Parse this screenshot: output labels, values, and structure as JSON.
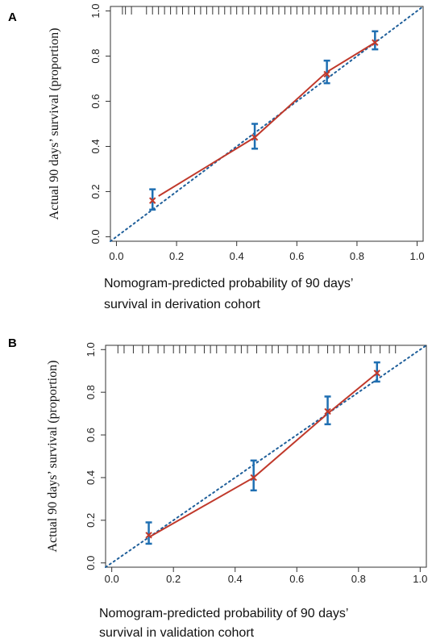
{
  "chart_data": [
    {
      "type": "scatter",
      "panel_label": "A",
      "xlabel": [
        "Nomogram-predicted probability  of 90 days’",
        "survival in derivation cohort"
      ],
      "ylabel": "Actual 90 days’ survival (proportion)",
      "xlim": [
        -0.02,
        1.02
      ],
      "ylim": [
        -0.02,
        1.02
      ],
      "xticks": [
        "0.0",
        "0.2",
        "0.4",
        "0.6",
        "0.8",
        "1.0"
      ],
      "yticks": [
        "0.0",
        "0.2",
        "0.4",
        "0.6",
        "0.8",
        "1.0"
      ],
      "reference_line": {
        "from": [
          -0.02,
          -0.02
        ],
        "to": [
          1.02,
          1.02
        ],
        "style": "dotted",
        "color": "#1f5f9a"
      },
      "calibration_line": {
        "x": [
          0.14,
          0.46,
          0.7,
          0.86
        ],
        "y": [
          0.18,
          0.44,
          0.73,
          0.86
        ],
        "color": "#c0392b"
      },
      "points": [
        {
          "x": 0.12,
          "y": 0.16,
          "ci": [
            0.12,
            0.21
          ]
        },
        {
          "x": 0.46,
          "y": 0.44,
          "ci": [
            0.39,
            0.5
          ]
        },
        {
          "x": 0.7,
          "y": 0.72,
          "ci": [
            0.68,
            0.78
          ]
        },
        {
          "x": 0.86,
          "y": 0.86,
          "ci": [
            0.83,
            0.91
          ]
        }
      ],
      "rug": [
        0.02,
        0.03,
        0.05,
        0.1,
        0.12,
        0.14,
        0.16,
        0.18,
        0.2,
        0.22,
        0.24,
        0.26,
        0.28,
        0.3,
        0.32,
        0.34,
        0.36,
        0.38,
        0.4,
        0.42,
        0.44,
        0.46,
        0.48,
        0.5,
        0.52,
        0.54,
        0.56,
        0.58,
        0.6,
        0.62,
        0.64,
        0.66,
        0.68,
        0.7,
        0.72,
        0.74,
        0.76,
        0.78,
        0.8,
        0.82,
        0.84,
        0.86,
        0.88,
        0.9,
        0.92,
        0.94
      ],
      "colors": {
        "point": "#c0392b",
        "errorbar": "#1f6fb2"
      }
    },
    {
      "type": "scatter",
      "panel_label": "B",
      "xlabel": [
        "Nomogram-predicted probability  of 90 days’",
        "survival in validation cohort"
      ],
      "ylabel": "Actual 90 days’ survival (proportion)",
      "xlim": [
        -0.02,
        1.02
      ],
      "ylim": [
        -0.02,
        1.02
      ],
      "xticks": [
        "0.0",
        "0.2",
        "0.4",
        "0.6",
        "0.8",
        "1.0"
      ],
      "yticks": [
        "0.0",
        "0.2",
        "0.4",
        "0.6",
        "0.8",
        "1.0"
      ],
      "reference_line": {
        "from": [
          -0.02,
          -0.02
        ],
        "to": [
          1.02,
          1.02
        ],
        "style": "dotted",
        "color": "#1f5f9a"
      },
      "calibration_line": {
        "x": [
          0.12,
          0.46,
          0.7,
          0.86
        ],
        "y": [
          0.12,
          0.4,
          0.7,
          0.89
        ],
        "color": "#c0392b"
      },
      "points": [
        {
          "x": 0.12,
          "y": 0.13,
          "ci": [
            0.09,
            0.19
          ]
        },
        {
          "x": 0.46,
          "y": 0.4,
          "ci": [
            0.34,
            0.48
          ]
        },
        {
          "x": 0.7,
          "y": 0.71,
          "ci": [
            0.65,
            0.78
          ]
        },
        {
          "x": 0.86,
          "y": 0.89,
          "ci": [
            0.85,
            0.94
          ]
        }
      ],
      "rug": [
        0.02,
        0.04,
        0.07,
        0.1,
        0.12,
        0.15,
        0.17,
        0.2,
        0.22,
        0.24,
        0.27,
        0.3,
        0.32,
        0.34,
        0.37,
        0.4,
        0.42,
        0.44,
        0.47,
        0.5,
        0.52,
        0.54,
        0.57,
        0.6,
        0.62,
        0.64,
        0.67,
        0.7,
        0.72,
        0.74,
        0.77,
        0.8,
        0.82,
        0.84,
        0.87,
        0.9,
        0.92
      ],
      "colors": {
        "point": "#c0392b",
        "errorbar": "#1f6fb2"
      }
    }
  ]
}
